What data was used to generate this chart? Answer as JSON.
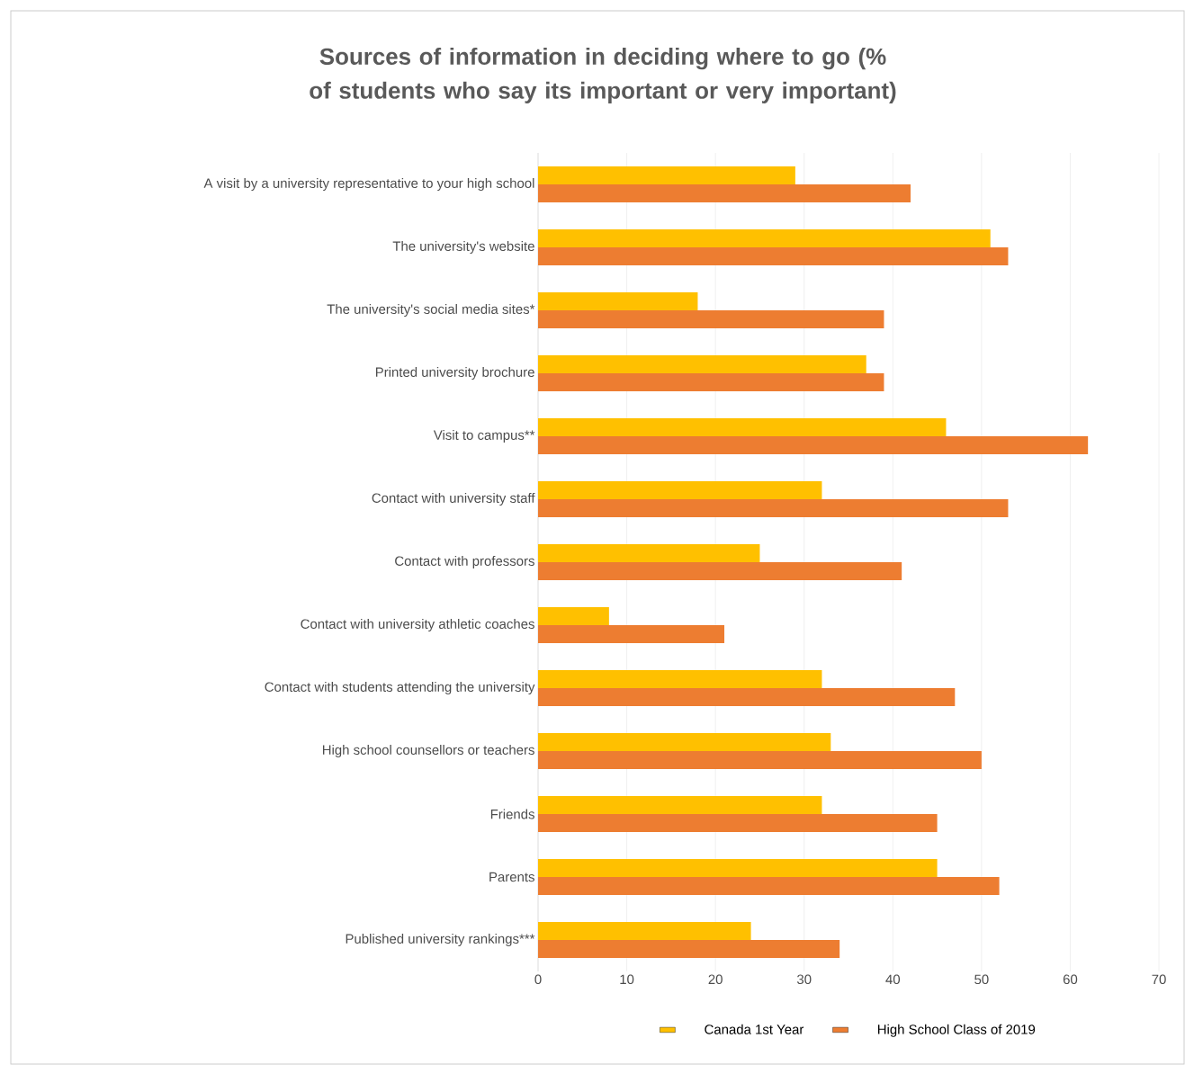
{
  "chart_data": {
    "type": "bar",
    "orientation": "horizontal",
    "title": "Sources of information in deciding where to go (% of students who say its important or very important)",
    "categories": [
      "A visit by a university representative to your high school",
      "The university's website",
      "The university's social media sites*",
      "Printed university brochure",
      "Visit to campus**",
      "Contact with university staff",
      "Contact with professors",
      "Contact with university athletic coaches",
      "Contact with students attending the university",
      "High school counsellors or teachers",
      "Friends",
      "Parents",
      "Published university rankings***"
    ],
    "series": [
      {
        "name": "Canada 1st Year",
        "color": "#ffc000",
        "values": [
          29,
          51,
          18,
          37,
          46,
          32,
          25,
          8,
          32,
          33,
          32,
          45,
          24
        ]
      },
      {
        "name": "High School Class of 2019",
        "color": "#ed7d31",
        "values": [
          42,
          53,
          39,
          39,
          62,
          53,
          41,
          21,
          47,
          50,
          45,
          52,
          34
        ]
      }
    ],
    "xlim": [
      0,
      70
    ],
    "xticks": [
      0,
      10,
      20,
      30,
      40,
      50,
      60,
      70
    ],
    "grid": "x",
    "legend": "bottom"
  }
}
